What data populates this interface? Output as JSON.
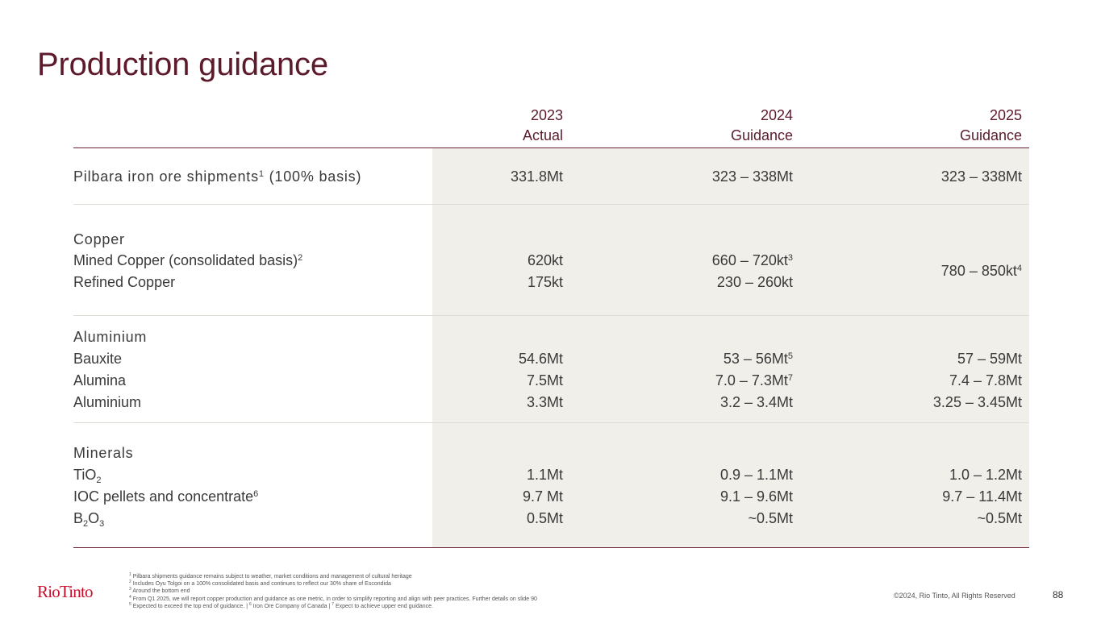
{
  "title": "Production guidance",
  "columns": [
    {
      "year": "2023",
      "label": "Actual"
    },
    {
      "year": "2024",
      "label": "Guidance"
    },
    {
      "year": "2025",
      "label": "Guidance"
    }
  ],
  "rows": {
    "pilbara": {
      "label": "Pilbara iron ore shipments",
      "sup": "1",
      "suffix": " (100% basis)",
      "v2023": "331.8Mt",
      "v2024": "323 – 338Mt",
      "v2025": "323 – 338Mt"
    },
    "copper": {
      "category": "Copper",
      "mined": {
        "label": "Mined Copper (consolidated basis)",
        "sup": "2",
        "v2023": "620kt",
        "v2024": "660 – 720kt",
        "v2024_sup": "3"
      },
      "refined": {
        "label": "Refined Copper",
        "v2023": "175kt",
        "v2024": "230 – 260kt"
      },
      "v2025": "780 – 850kt",
      "v2025_sup": "4"
    },
    "aluminium": {
      "category": "Aluminium",
      "bauxite": {
        "label": "Bauxite",
        "v2023": "54.6Mt",
        "v2024": "53 – 56Mt",
        "v2024_sup": "5",
        "v2025": "57 – 59Mt"
      },
      "alumina": {
        "label": "Alumina",
        "v2023": "7.5Mt",
        "v2024": "7.0 – 7.3Mt",
        "v2024_sup": "7",
        "v2025": "7.4 – 7.8Mt"
      },
      "aluminium": {
        "label": "Aluminium",
        "v2023": "3.3Mt",
        "v2024": "3.2 – 3.4Mt",
        "v2025": "3.25 – 3.45Mt"
      }
    },
    "minerals": {
      "category": "Minerals",
      "tio2": {
        "label_a": "TiO",
        "label_sub": "2",
        "v2023": "1.1Mt",
        "v2024": "0.9 – 1.1Mt",
        "v2025": "1.0 – 1.2Mt"
      },
      "ioc": {
        "label": "IOC pellets and concentrate",
        "sup": "6",
        "v2023": "9.7 Mt",
        "v2024": "9.1 – 9.6Mt",
        "v2025": "9.7 – 11.4Mt"
      },
      "b2o3": {
        "label_a": "B",
        "sub_a": "2",
        "label_b": "O",
        "sub_b": "3",
        "v2023": "0.5Mt",
        "v2024": "~0.5Mt",
        "v2025": "~0.5Mt"
      }
    }
  },
  "footnotes": [
    {
      "num": "1",
      "text": " Pilbara shipments guidance remains subject to weather, market conditions and management of cultural heritage"
    },
    {
      "num": "2",
      "text": " Includes Oyu Tolgoi on a 100% consolidated basis and continues to reflect our 30% share of Escondida"
    },
    {
      "num": "3",
      "text": " Around the bottom end"
    },
    {
      "num": "4",
      "text": " From Q1 2025, we will report copper production and guidance as one metric, in order to simplify reporting and align with peer practices. Further details on slide 90"
    },
    {
      "num": "5",
      "text": " Expected to exceed the top end of guidance. | ",
      "num2": "6",
      "text2": " Iron Ore Company of Canada | ",
      "num3": "7",
      "text3": " Expect to achieve upper end guidance."
    }
  ],
  "logo": "RioTinto",
  "copyright": "©2024, Rio Tinto, All Rights Reserved",
  "page_number": "88"
}
